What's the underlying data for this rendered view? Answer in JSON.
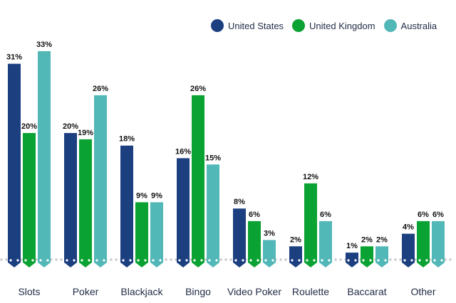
{
  "legend": [
    {
      "name": "United States",
      "color": "#1c3f80"
    },
    {
      "name": "United Kingdom",
      "color": "#0aa232"
    },
    {
      "name": "Australia",
      "color": "#52b7b7"
    }
  ],
  "chart_data": {
    "type": "bar",
    "categories": [
      "Slots",
      "Poker",
      "Blackjack",
      "Bingo",
      "Video Poker",
      "Roulette",
      "Baccarat",
      "Other"
    ],
    "series": [
      {
        "name": "United States",
        "color": "#1c3f80",
        "values": [
          31,
          20,
          18,
          16,
          8,
          2,
          1,
          4
        ]
      },
      {
        "name": "United Kingdom",
        "color": "#0aa232",
        "values": [
          20,
          19,
          9,
          26,
          6,
          12,
          2,
          6
        ]
      },
      {
        "name": "Australia",
        "color": "#52b7b7",
        "values": [
          33,
          26,
          9,
          15,
          3,
          6,
          2,
          6
        ]
      }
    ],
    "value_suffix": "%",
    "title": "",
    "xlabel": "",
    "ylabel": "",
    "ylim": [
      0,
      35
    ],
    "grid": false,
    "legend_position": "top-right"
  }
}
